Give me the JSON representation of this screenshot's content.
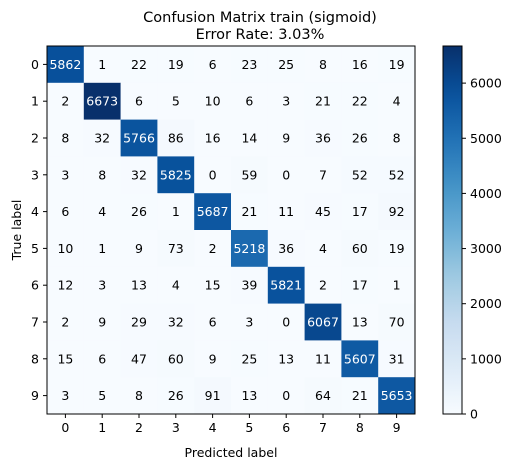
{
  "chart_data": {
    "type": "heatmap",
    "title": "Confusion Matrix  train (sigmoid)",
    "subtitle": "Error Rate: 3.03%",
    "xlabel": "Predicted label",
    "ylabel": "True label",
    "x_categories": [
      "0",
      "1",
      "2",
      "3",
      "4",
      "5",
      "6",
      "7",
      "8",
      "9"
    ],
    "y_categories": [
      "0",
      "1",
      "2",
      "3",
      "4",
      "5",
      "6",
      "7",
      "8",
      "9"
    ],
    "matrix": [
      [
        5862,
        1,
        22,
        19,
        6,
        23,
        25,
        8,
        16,
        19
      ],
      [
        2,
        6673,
        6,
        5,
        10,
        6,
        3,
        21,
        22,
        4
      ],
      [
        8,
        32,
        5766,
        86,
        16,
        14,
        9,
        36,
        26,
        8
      ],
      [
        3,
        8,
        32,
        5825,
        0,
        59,
        0,
        7,
        52,
        52
      ],
      [
        6,
        4,
        26,
        1,
        5687,
        21,
        11,
        45,
        17,
        92
      ],
      [
        10,
        1,
        9,
        73,
        2,
        5218,
        36,
        4,
        60,
        19
      ],
      [
        12,
        3,
        13,
        4,
        15,
        39,
        5821,
        2,
        17,
        1
      ],
      [
        2,
        9,
        29,
        32,
        6,
        3,
        0,
        6067,
        13,
        70
      ],
      [
        15,
        6,
        47,
        60,
        9,
        25,
        13,
        11,
        5607,
        31
      ],
      [
        3,
        5,
        8,
        26,
        91,
        13,
        0,
        64,
        21,
        5653
      ]
    ],
    "colormap": "Blues",
    "vmin": 0,
    "vmax": 6673,
    "colorbar_ticks": [
      "0",
      "1000",
      "2000",
      "3000",
      "4000",
      "5000",
      "6000"
    ],
    "colorbar_tick_values": [
      0,
      1000,
      2000,
      3000,
      4000,
      5000,
      6000
    ],
    "colors": {
      "low": "#f7fbff",
      "high": "#08306b",
      "text_dark": "#000000",
      "text_light": "#ffffff"
    }
  }
}
